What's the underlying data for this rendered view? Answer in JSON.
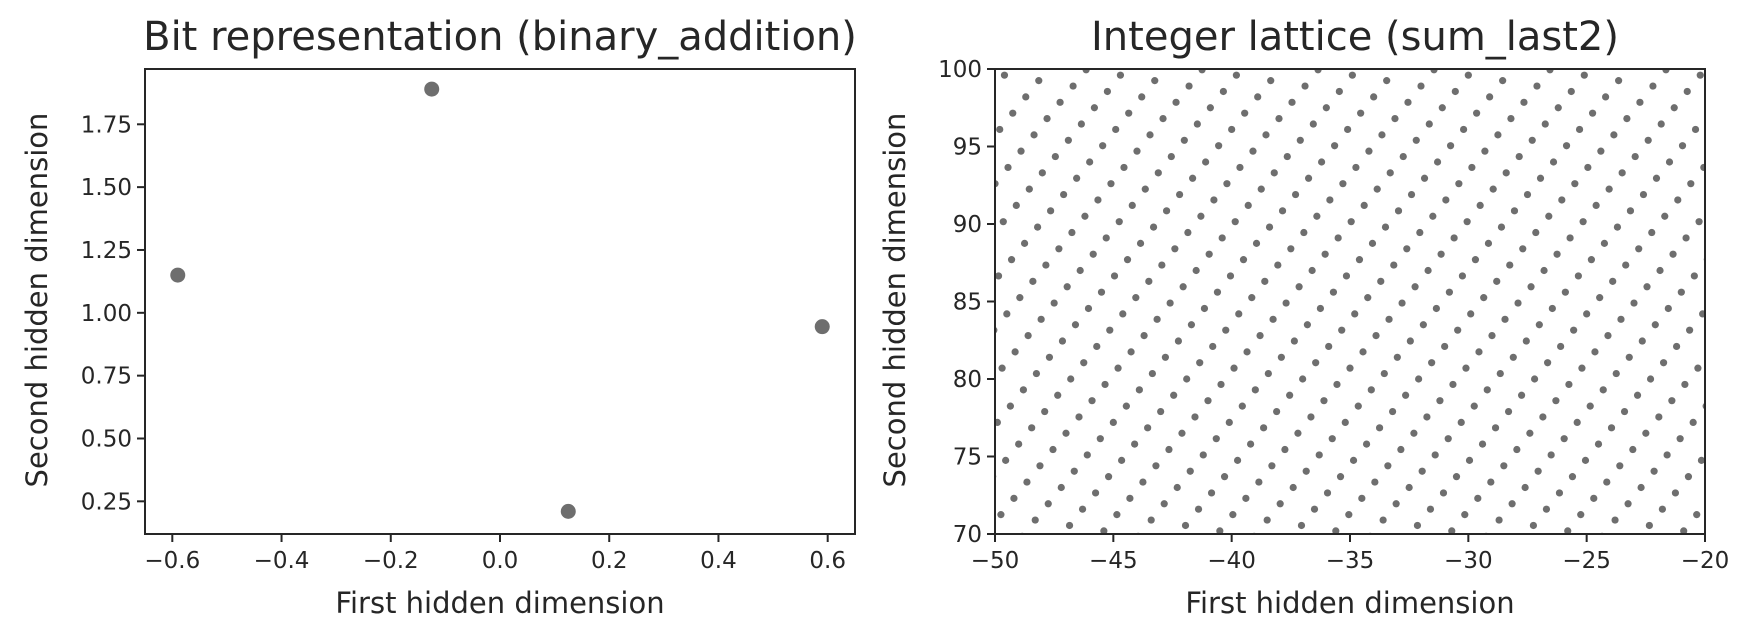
{
  "chart_data": [
    {
      "type": "scatter",
      "title": "Bit representation (binary_addition)",
      "xlabel": "First hidden dimension",
      "ylabel": "Second hidden dimension",
      "xlim": [
        -0.65,
        0.65
      ],
      "ylim": [
        0.12,
        1.97
      ],
      "xticks": [
        -0.6,
        -0.4,
        -0.2,
        0.0,
        0.2,
        0.4,
        0.6
      ],
      "xtick_labels": [
        "−0.6",
        "−0.4",
        "−0.2",
        "0.0",
        "0.2",
        "0.4",
        "0.6"
      ],
      "yticks": [
        0.25,
        0.5,
        0.75,
        1.0,
        1.25,
        1.5,
        1.75
      ],
      "ytick_labels": [
        "0.25",
        "0.50",
        "0.75",
        "1.00",
        "1.25",
        "1.50",
        "1.75"
      ],
      "grid": false,
      "marker_color": "#6e6e6e",
      "points": [
        {
          "x": -0.59,
          "y": 1.15
        },
        {
          "x": -0.125,
          "y": 1.89
        },
        {
          "x": 0.125,
          "y": 0.21
        },
        {
          "x": 0.59,
          "y": 0.945
        }
      ]
    },
    {
      "type": "scatter",
      "title": "Integer lattice (sum_last2)",
      "xlabel": "First hidden dimension",
      "ylabel": "Second hidden dimension",
      "xlim": [
        -50,
        -20
      ],
      "ylim": [
        70,
        100
      ],
      "xticks": [
        -50,
        -45,
        -40,
        -35,
        -30,
        -25,
        -20
      ],
      "xtick_labels": [
        "−50",
        "−45",
        "−40",
        "−35",
        "−30",
        "−25",
        "−20"
      ],
      "yticks": [
        70,
        75,
        80,
        85,
        90,
        95,
        100
      ],
      "ytick_labels": [
        "70",
        "75",
        "80",
        "85",
        "90",
        "95",
        "100"
      ],
      "grid": false,
      "marker_color": "#6e6e6e",
      "lattice": {
        "basis_a": [
          0.55,
          1.05
        ],
        "basis_b": [
          1.45,
          -0.35
        ],
        "origin": [
          -50.3,
          70.2
        ],
        "description": "dense regular lattice of points filling the visible range"
      }
    }
  ]
}
